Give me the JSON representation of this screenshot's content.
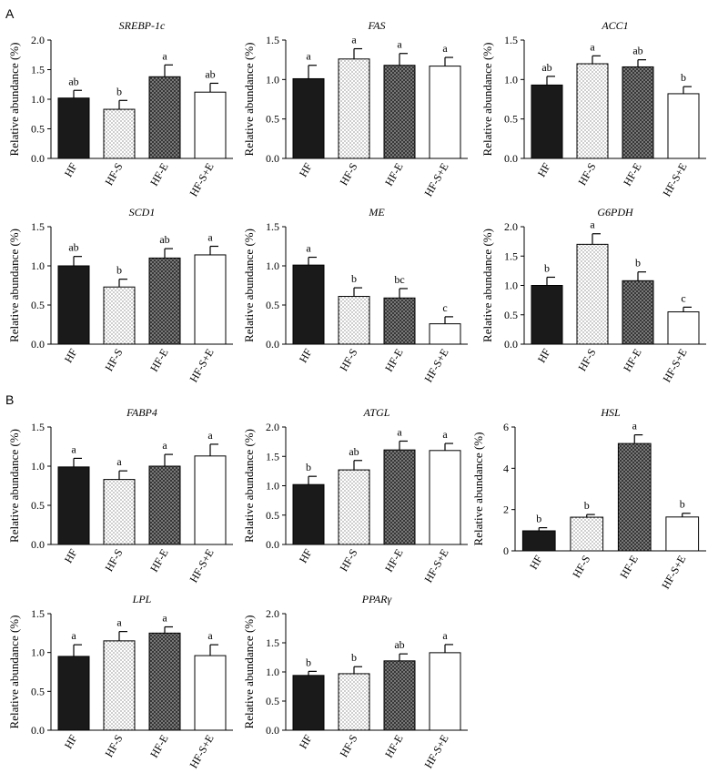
{
  "figure": {
    "panel_labels": [
      "A",
      "B"
    ],
    "legend_colors": {
      "HF": "#1a1a1a",
      "HF-S": "#dcdcdc",
      "HF-E": "#6a6a6a",
      "HF-S+E": "#ffffff"
    }
  },
  "chart_data": [
    {
      "type": "bar",
      "panel": "A",
      "title": "SREBP-1c",
      "ylabel": "Relative abundance (%)",
      "categories": [
        "HF",
        "HF-S",
        "HF-E",
        "HF-S+E"
      ],
      "values": [
        1.02,
        0.83,
        1.38,
        1.12
      ],
      "errors": [
        0.13,
        0.15,
        0.2,
        0.15
      ],
      "letters": [
        "ab",
        "b",
        "a",
        "ab"
      ],
      "ylim": [
        0,
        2.0
      ],
      "yticks": [
        "0.0",
        "0.5",
        "1.0",
        "1.5",
        "2.0"
      ]
    },
    {
      "type": "bar",
      "panel": "A",
      "title": "FAS",
      "ylabel": "Relative abundance (%)",
      "categories": [
        "HF",
        "HF-S",
        "HF-E",
        "HF-S+E"
      ],
      "values": [
        1.01,
        1.26,
        1.18,
        1.17
      ],
      "errors": [
        0.17,
        0.13,
        0.15,
        0.11
      ],
      "letters": [
        "a",
        "a",
        "a",
        "a"
      ],
      "ylim": [
        0,
        1.5
      ],
      "yticks": [
        "0.0",
        "0.5",
        "1.0",
        "1.5"
      ]
    },
    {
      "type": "bar",
      "panel": "A",
      "title": "ACC1",
      "ylabel": "Relative abundance (%)",
      "categories": [
        "HF",
        "HF-S",
        "HF-E",
        "HF-S+E"
      ],
      "values": [
        0.93,
        1.2,
        1.16,
        0.82
      ],
      "errors": [
        0.11,
        0.1,
        0.09,
        0.09
      ],
      "letters": [
        "ab",
        "a",
        "ab",
        "b"
      ],
      "ylim": [
        0,
        1.5
      ],
      "yticks": [
        "0.0",
        "0.5",
        "1.0",
        "1.5"
      ]
    },
    {
      "type": "bar",
      "panel": "A",
      "title": "SCD1",
      "ylabel": "Relative abundance (%)",
      "categories": [
        "HF",
        "HF-S",
        "HF-E",
        "HF-S+E"
      ],
      "values": [
        1.0,
        0.73,
        1.1,
        1.14
      ],
      "errors": [
        0.12,
        0.1,
        0.12,
        0.11
      ],
      "letters": [
        "ab",
        "b",
        "ab",
        "a"
      ],
      "ylim": [
        0,
        1.5
      ],
      "yticks": [
        "0.0",
        "0.5",
        "1.0",
        "1.5"
      ]
    },
    {
      "type": "bar",
      "panel": "A",
      "title": "ME",
      "ylabel": "Relative abundance (%)",
      "categories": [
        "HF",
        "HF-S",
        "HF-E",
        "HF-S+E"
      ],
      "values": [
        1.01,
        0.61,
        0.59,
        0.26
      ],
      "errors": [
        0.1,
        0.11,
        0.12,
        0.09
      ],
      "letters": [
        "a",
        "b",
        "bc",
        "c"
      ],
      "ylim": [
        0,
        1.5
      ],
      "yticks": [
        "0.0",
        "0.5",
        "1.0",
        "1.5"
      ]
    },
    {
      "type": "bar",
      "panel": "A",
      "title": "G6PDH",
      "ylabel": "Relative abundance (%)",
      "categories": [
        "HF",
        "HF-S",
        "HF-E",
        "HF-S+E"
      ],
      "values": [
        1.0,
        1.7,
        1.08,
        0.55
      ],
      "errors": [
        0.14,
        0.18,
        0.15,
        0.08
      ],
      "letters": [
        "b",
        "a",
        "b",
        "c"
      ],
      "ylim": [
        0,
        2.0
      ],
      "yticks": [
        "0.0",
        "0.5",
        "1.0",
        "1.5",
        "2.0"
      ]
    },
    {
      "type": "bar",
      "panel": "B",
      "title": "FABP4",
      "ylabel": "Relative abundance (%)",
      "categories": [
        "HF",
        "HF-S",
        "HF-E",
        "HF-S+E"
      ],
      "values": [
        0.99,
        0.83,
        1.0,
        1.13
      ],
      "errors": [
        0.11,
        0.11,
        0.15,
        0.15
      ],
      "letters": [
        "a",
        "a",
        "a",
        "a"
      ],
      "ylim": [
        0,
        1.5
      ],
      "yticks": [
        "0.0",
        "0.5",
        "1.0",
        "1.5"
      ]
    },
    {
      "type": "bar",
      "panel": "B",
      "title": "ATGL",
      "ylabel": "Relative abundance (%)",
      "categories": [
        "HF",
        "HF-S",
        "HF-E",
        "HF-S+E"
      ],
      "values": [
        1.02,
        1.27,
        1.61,
        1.6
      ],
      "errors": [
        0.14,
        0.16,
        0.15,
        0.12
      ],
      "letters": [
        "b",
        "ab",
        "a",
        "a"
      ],
      "ylim": [
        0,
        2.0
      ],
      "yticks": [
        "0.0",
        "0.5",
        "1.0",
        "1.5",
        "2.0"
      ]
    },
    {
      "type": "bar",
      "panel": "B",
      "title": "HSL",
      "ylabel": "Relative abundance (%)",
      "categories": [
        "HF",
        "HF-S",
        "HF-E",
        "HF-S+E"
      ],
      "values": [
        0.97,
        1.63,
        5.2,
        1.64
      ],
      "errors": [
        0.15,
        0.13,
        0.42,
        0.18
      ],
      "letters": [
        "b",
        "b",
        "a",
        "b"
      ],
      "ylim": [
        0,
        6
      ],
      "yticks": [
        "0",
        "2",
        "4",
        "6"
      ]
    },
    {
      "type": "bar",
      "panel": "B",
      "title": "LPL",
      "ylabel": "Relative abundance (%)",
      "categories": [
        "HF",
        "HF-S",
        "HF-E",
        "HF-S+E"
      ],
      "values": [
        0.95,
        1.15,
        1.25,
        0.96
      ],
      "errors": [
        0.15,
        0.12,
        0.08,
        0.14
      ],
      "letters": [
        "a",
        "a",
        "a",
        "a"
      ],
      "ylim": [
        0,
        1.5
      ],
      "yticks": [
        "0.0",
        "0.5",
        "1.0",
        "1.5"
      ]
    },
    {
      "type": "bar",
      "panel": "B",
      "title": "PPARγ",
      "ylabel": "Relative abundance (%)",
      "categories": [
        "HF",
        "HF-S",
        "HF-E",
        "HF-S+E"
      ],
      "values": [
        0.94,
        0.97,
        1.19,
        1.33
      ],
      "errors": [
        0.07,
        0.12,
        0.12,
        0.14
      ],
      "letters": [
        "b",
        "b",
        "ab",
        "a"
      ],
      "ylim": [
        0,
        2.0
      ],
      "yticks": [
        "0.0",
        "0.5",
        "1.0",
        "1.5",
        "2.0"
      ]
    }
  ]
}
